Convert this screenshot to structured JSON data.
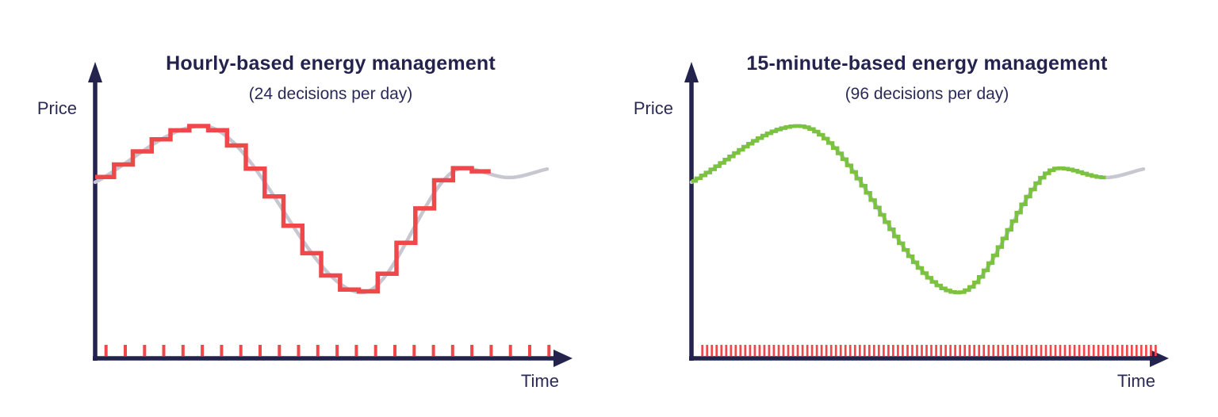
{
  "page": {
    "background_color": "#ffffff",
    "text_color": "#23234e"
  },
  "chart_data": [
    {
      "type": "line",
      "variant": "smooth-price-curve-with-step-approximation",
      "title": "Hourly-based energy management",
      "subtitle": "(24 decisions per day)",
      "xlabel": "Time",
      "ylabel": "Price",
      "decisions_per_day": 24,
      "x_tick_count": 24,
      "step_count": 21,
      "step_width_fraction": 0.041667,
      "axes_numeric_labels": false,
      "legend": "none",
      "grid": false,
      "colors": {
        "step_line": "#f0484a",
        "smooth_curve": "#c7c7d2",
        "axis": "#23234e",
        "ticks": "#f0484a"
      },
      "curve_keypoints": [
        {
          "t": 0.0,
          "price": 0.597
        },
        {
          "t": 0.237,
          "price": 0.788
        },
        {
          "t": 0.591,
          "price": 0.223
        },
        {
          "t": 0.814,
          "price": 0.645
        },
        {
          "t": 0.916,
          "price": 0.613
        },
        {
          "t": 1.0,
          "price": 0.642
        }
      ]
    },
    {
      "type": "line",
      "variant": "smooth-price-curve-with-step-approximation",
      "title": "15-minute-based energy management",
      "subtitle": "(96 decisions per day)",
      "xlabel": "Time",
      "ylabel": "Price",
      "decisions_per_day": 96,
      "x_tick_count": 96,
      "step_count": 88,
      "step_width_fraction": 0.010417,
      "axes_numeric_labels": false,
      "legend": "none",
      "grid": false,
      "colors": {
        "step_line": "#7cc241",
        "smooth_curve": "#c7c7d2",
        "axis": "#23234e",
        "ticks": "#f0484a"
      },
      "curve_keypoints": [
        {
          "t": 0.0,
          "price": 0.597
        },
        {
          "t": 0.237,
          "price": 0.788
        },
        {
          "t": 0.591,
          "price": 0.223
        },
        {
          "t": 0.814,
          "price": 0.645
        },
        {
          "t": 0.916,
          "price": 0.613
        },
        {
          "t": 1.0,
          "price": 0.642
        }
      ]
    }
  ]
}
